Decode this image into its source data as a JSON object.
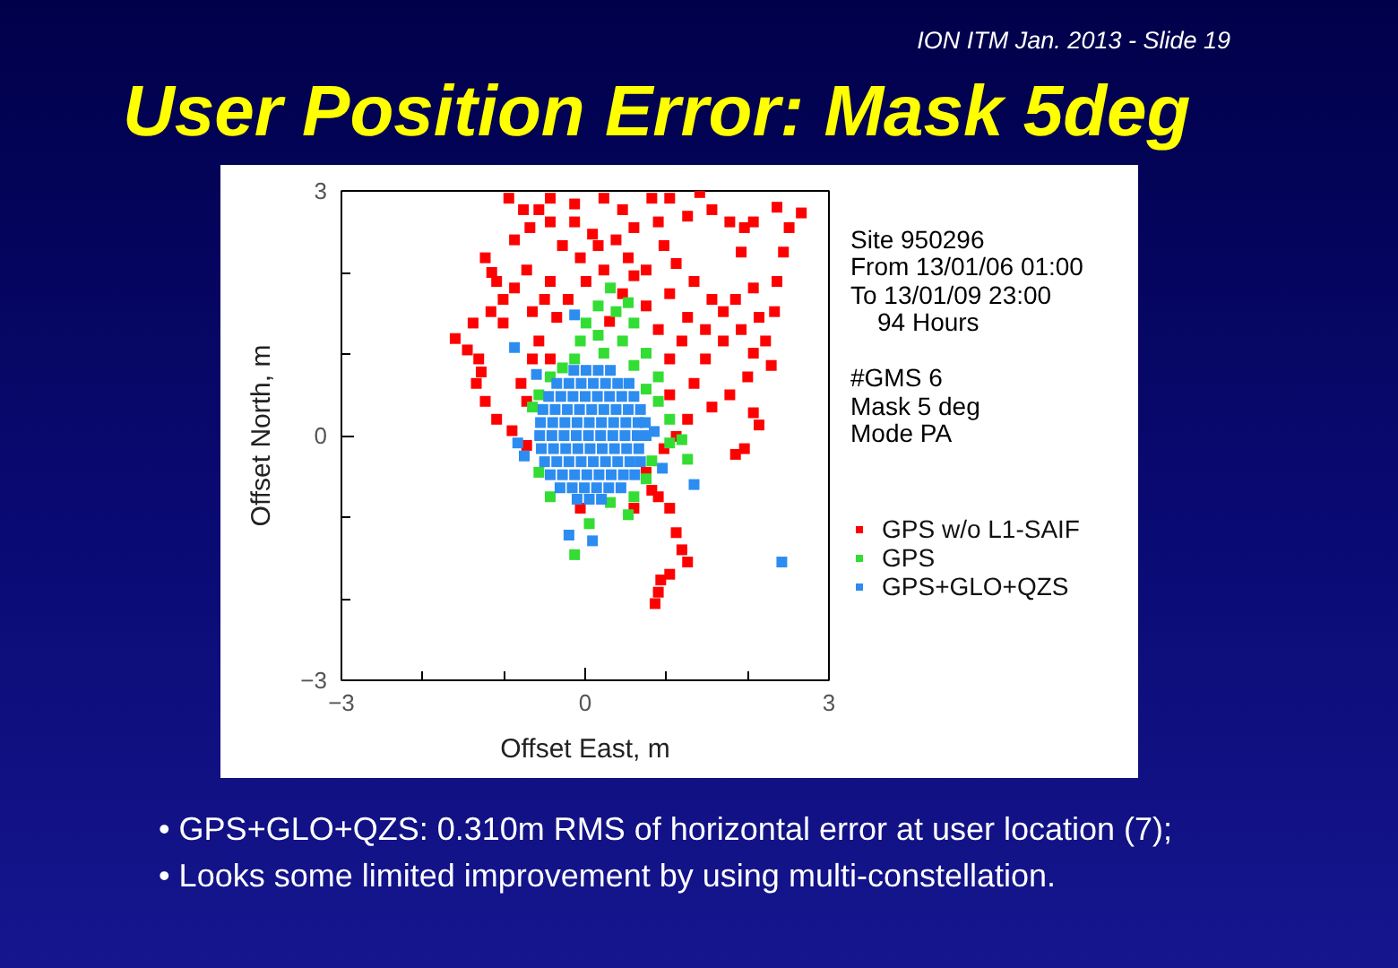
{
  "chart_data": {
    "type": "scatter",
    "title": "User Position Error: Mask 5deg",
    "xlabel": "Offset East, m",
    "ylabel": "Offset North, m",
    "xlim": [
      -3,
      3
    ],
    "ylim": [
      -3,
      3
    ],
    "xticks": [
      -3,
      {
        "value": -2,
        "label": null
      },
      {
        "value": -1,
        "label": null
      },
      0,
      {
        "value": 1,
        "label": null
      },
      {
        "value": 2,
        "label": null
      },
      3
    ],
    "yticks": [
      -3,
      {
        "value": -2,
        "label": null
      },
      {
        "value": -1,
        "label": null
      },
      0,
      {
        "value": 1,
        "label": null
      },
      {
        "value": 2,
        "label": null
      },
      3
    ],
    "marker": "square",
    "legend": "right",
    "series": [
      {
        "name": "GPS w/o L1-SAIF",
        "color": "#ff0000",
        "x": [
          -1.6,
          -1.38,
          -1.16,
          -1.31,
          -1.34,
          -1.23,
          -1.09,
          -0.9,
          -0.72,
          -1.45,
          -1.28,
          -1.23,
          -1.09,
          -1.01,
          -0.87,
          -0.72,
          -0.87,
          -1.01,
          -1.15,
          -0.94,
          -0.76,
          -0.68,
          -0.57,
          -0.43,
          -0.13,
          0.09,
          0.23,
          0.38,
          0.6,
          0.82,
          0.97,
          1.26,
          1.41,
          1.78,
          1.92,
          2.07,
          2.36,
          2.51,
          2.66,
          2.44,
          2.36,
          2.33,
          -0.43,
          -0.13,
          0.46,
          1.04,
          1.56,
          1.96,
          -0.43,
          -0.21,
          0.01,
          0.23,
          0.46,
          0.6,
          0.75,
          1.04,
          1.26,
          1.19,
          1.04,
          1.48,
          1.7,
          1.92,
          2.07,
          2.0,
          1.78,
          1.56,
          1.26,
          1.12,
          0.97,
          2.07,
          2.14,
          1.96,
          1.85,
          2.22,
          2.29,
          -0.28,
          -0.06,
          0.16,
          0.53,
          0.75,
          0.9,
          1.12,
          1.34,
          1.56,
          1.7,
          1.85,
          2.07,
          2.14,
          1.48,
          1.34,
          1.04,
          -0.35,
          -0.5,
          0.3,
          0.9,
          -0.65,
          -0.79,
          -0.57,
          -0.43,
          -0.72,
          -0.65,
          0.75,
          0.9,
          1.04,
          1.12,
          1.19,
          1.26,
          1.04,
          0.9,
          0.86,
          0.93,
          -0.06,
          0.6,
          0.82
        ],
        "values": [
          1.19,
          1.38,
          1.52,
          0.94,
          0.64,
          0.42,
          0.2,
          0.06,
          -0.12,
          1.05,
          0.78,
          2.18,
          1.89,
          1.67,
          2.4,
          2.03,
          1.81,
          1.38,
          2.0,
          2.91,
          2.77,
          2.55,
          2.77,
          2.62,
          2.62,
          2.47,
          2.91,
          2.4,
          2.55,
          2.91,
          2.33,
          2.69,
          2.98,
          2.62,
          2.25,
          2.62,
          2.8,
          2.55,
          2.73,
          2.25,
          1.89,
          1.52,
          2.91,
          2.84,
          2.77,
          2.91,
          2.77,
          2.55,
          1.89,
          1.67,
          1.89,
          2.03,
          1.74,
          1.96,
          1.59,
          1.74,
          1.45,
          1.16,
          0.94,
          1.3,
          1.16,
          1.3,
          1.01,
          0.72,
          0.5,
          0.35,
          0.2,
          -0.01,
          -0.16,
          0.28,
          0.13,
          -0.16,
          -0.23,
          1.16,
          0.86,
          2.33,
          2.18,
          2.33,
          2.18,
          2.03,
          2.62,
          2.11,
          1.89,
          1.67,
          1.52,
          1.67,
          1.81,
          1.45,
          0.94,
          0.64,
          0.5,
          1.45,
          1.67,
          1.4,
          1.3,
          0.94,
          0.64,
          1.16,
          0.94,
          0.42,
          1.52,
          -0.45,
          -0.75,
          -0.89,
          -1.19,
          -1.4,
          -1.55,
          -1.7,
          -1.92,
          -2.06,
          -1.77,
          -0.89,
          -0.89,
          -0.67
        ]
      },
      {
        "name": "GPS",
        "color": "#33dd33",
        "x": [
          0.16,
          0.38,
          0.6,
          0.16,
          -0.06,
          0.46,
          0.75,
          0.23,
          -0.13,
          0.6,
          0.9,
          -0.43,
          -0.28,
          0.75,
          0.9,
          -0.57,
          -0.65,
          1.04,
          1.19,
          1.26,
          0.82,
          0.75,
          0.6,
          0.53,
          0.31,
          0.05,
          -0.13,
          -0.43,
          -0.57,
          0.01,
          0.31,
          0.53,
          1.04
        ],
        "values": [
          1.59,
          1.52,
          1.38,
          1.23,
          1.16,
          1.16,
          1.01,
          1.01,
          0.94,
          0.86,
          0.72,
          0.72,
          0.83,
          0.57,
          0.42,
          0.5,
          0.35,
          0.2,
          -0.05,
          -0.29,
          -0.31,
          -0.53,
          -0.75,
          -0.97,
          -0.82,
          -1.08,
          -1.46,
          -0.75,
          -0.45,
          1.38,
          1.81,
          1.63,
          -0.09
        ]
      },
      {
        "name": "GPS+GLO+QZS",
        "color": "#2d8cf0",
        "x": [
          -0.14,
          0.01,
          0.16,
          0.31,
          -0.35,
          -0.2,
          -0.05,
          0.1,
          0.25,
          0.4,
          0.54,
          -0.45,
          -0.3,
          -0.15,
          0.0,
          0.15,
          0.3,
          0.45,
          0.6,
          -0.52,
          -0.37,
          -0.22,
          -0.07,
          0.08,
          0.23,
          0.38,
          0.53,
          0.68,
          -0.55,
          -0.4,
          -0.25,
          -0.1,
          0.05,
          0.2,
          0.35,
          0.5,
          0.65,
          0.74,
          -0.56,
          -0.41,
          -0.26,
          -0.11,
          0.04,
          0.19,
          0.34,
          0.49,
          0.64,
          0.75,
          -0.54,
          -0.39,
          -0.24,
          -0.09,
          0.06,
          0.21,
          0.36,
          0.51,
          0.66,
          -0.5,
          -0.35,
          -0.2,
          -0.05,
          0.1,
          0.25,
          0.4,
          0.55,
          0.68,
          -0.43,
          -0.28,
          -0.13,
          0.02,
          0.17,
          0.32,
          0.47,
          0.61,
          -0.31,
          -0.16,
          -0.01,
          0.14,
          0.29,
          0.44,
          -0.1,
          0.05,
          0.2,
          -0.83,
          -0.2,
          0.09,
          2.42,
          1.34,
          -0.87,
          -0.13,
          -0.75,
          0.95,
          0.85,
          -0.6
        ],
        "values": [
          0.8,
          0.8,
          0.8,
          0.8,
          0.64,
          0.64,
          0.64,
          0.64,
          0.64,
          0.64,
          0.64,
          0.48,
          0.48,
          0.48,
          0.48,
          0.48,
          0.48,
          0.48,
          0.48,
          0.32,
          0.32,
          0.32,
          0.32,
          0.32,
          0.32,
          0.32,
          0.32,
          0.32,
          0.16,
          0.16,
          0.16,
          0.16,
          0.16,
          0.16,
          0.16,
          0.16,
          0.16,
          0.16,
          0.0,
          0.0,
          0.0,
          0.0,
          0.0,
          0.0,
          0.0,
          0.0,
          0.0,
          0.0,
          -0.16,
          -0.16,
          -0.16,
          -0.16,
          -0.16,
          -0.16,
          -0.16,
          -0.16,
          -0.16,
          -0.32,
          -0.32,
          -0.32,
          -0.32,
          -0.32,
          -0.32,
          -0.32,
          -0.32,
          -0.32,
          -0.48,
          -0.48,
          -0.48,
          -0.48,
          -0.48,
          -0.48,
          -0.48,
          -0.48,
          -0.64,
          -0.64,
          -0.64,
          -0.64,
          -0.64,
          -0.64,
          -0.78,
          -0.78,
          -0.78,
          -0.09,
          -1.22,
          -1.29,
          -1.55,
          -0.6,
          1.08,
          1.48,
          -0.25,
          -0.4,
          0.05,
          0.75
        ]
      }
    ],
    "annotations": [
      "ION ITM Jan. 2013 - Slide 19",
      "Site 950296",
      "From 13/01/06 01:00",
      "To 13/01/09 23:00",
      "94 Hours",
      "#GMS 6",
      "Mask 5 deg",
      "Mode PA",
      "• GPS+GLO+QZS: 0.310m RMS of horizontal error at user location (7);",
      "• Looks some limited improvement by using multi-constellation."
    ]
  }
}
